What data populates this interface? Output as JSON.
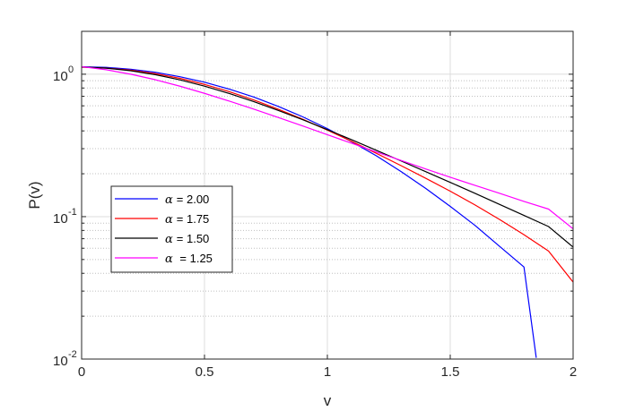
{
  "chart_data": {
    "type": "line",
    "xlabel": "v",
    "ylabel": "P(v)",
    "xlim": [
      0,
      2
    ],
    "ylim": [
      0.01,
      2
    ],
    "yscale": "log",
    "grid": true,
    "minor_grid_y": true,
    "legend_position": "lower-left",
    "x_ticks": [
      {
        "value": 0,
        "label": "0"
      },
      {
        "value": 0.5,
        "label": "0.5"
      },
      {
        "value": 1,
        "label": "1"
      },
      {
        "value": 1.5,
        "label": "1.5"
      },
      {
        "value": 2,
        "label": "2"
      }
    ],
    "y_ticks": [
      {
        "value": 0.01,
        "base": "10",
        "exp": "-2"
      },
      {
        "value": 0.1,
        "base": "10",
        "exp": "-1"
      },
      {
        "value": 1,
        "base": "10",
        "exp": "0"
      }
    ],
    "series": [
      {
        "name": "α = 2.00",
        "legend_symbol": "α",
        "legend_text": "= 2.00",
        "color": "#0000ff",
        "x": [
          0,
          0.1,
          0.2,
          0.3,
          0.4,
          0.5,
          0.6,
          0.7,
          0.8,
          0.9,
          1.0,
          1.1,
          1.2,
          1.3,
          1.4,
          1.5,
          1.6,
          1.7,
          1.8,
          1.85
        ],
        "y": [
          1.128,
          1.117,
          1.084,
          1.031,
          0.96,
          0.879,
          0.787,
          0.692,
          0.594,
          0.502,
          0.415,
          0.335,
          0.267,
          0.207,
          0.158,
          0.118,
          0.087,
          0.062,
          0.0443,
          0.0102
        ]
      },
      {
        "name": "α = 1.75",
        "legend_symbol": "α",
        "legend_text": "= 1.75",
        "color": "#ff0000",
        "x": [
          0,
          0.1,
          0.2,
          0.3,
          0.4,
          0.5,
          0.6,
          0.7,
          0.8,
          0.9,
          1.0,
          1.1,
          1.2,
          1.3,
          1.4,
          1.5,
          1.6,
          1.7,
          1.8,
          1.9,
          2.0
        ],
        "y": [
          1.12,
          1.105,
          1.068,
          1.01,
          0.935,
          0.848,
          0.755,
          0.66,
          0.568,
          0.483,
          0.405,
          0.337,
          0.278,
          0.228,
          0.186,
          0.151,
          0.121,
          0.0957,
          0.0747,
          0.0573,
          0.0347
        ]
      },
      {
        "name": "α = 1.50",
        "legend_symbol": "α",
        "legend_text": "= 1.50",
        "color": "#000000",
        "x": [
          0,
          0.1,
          0.2,
          0.3,
          0.4,
          0.5,
          0.6,
          0.7,
          0.8,
          0.9,
          1.0,
          1.1,
          1.2,
          1.3,
          1.4,
          1.5,
          1.6,
          1.7,
          1.8,
          1.9,
          2.0
        ],
        "y": [
          1.125,
          1.103,
          1.058,
          0.993,
          0.913,
          0.825,
          0.733,
          0.643,
          0.557,
          0.479,
          0.408,
          0.346,
          0.292,
          0.246,
          0.207,
          0.174,
          0.146,
          0.122,
          0.102,
          0.0852,
          0.0611
        ]
      },
      {
        "name": "α  = 1.25",
        "legend_symbol": "α",
        "legend_text": " = 1.25",
        "color": "#ff00ff",
        "x": [
          0,
          0.1,
          0.2,
          0.3,
          0.4,
          0.5,
          0.6,
          0.7,
          0.8,
          0.9,
          1.0,
          1.1,
          1.2,
          1.3,
          1.4,
          1.5,
          1.6,
          1.7,
          1.8,
          1.9,
          2.0
        ],
        "y": [
          1.13,
          1.075,
          1.0,
          0.915,
          0.824,
          0.734,
          0.648,
          0.569,
          0.497,
          0.433,
          0.376,
          0.327,
          0.284,
          0.248,
          0.216,
          0.189,
          0.166,
          0.146,
          0.128,
          0.113,
          0.0821
        ]
      }
    ]
  }
}
